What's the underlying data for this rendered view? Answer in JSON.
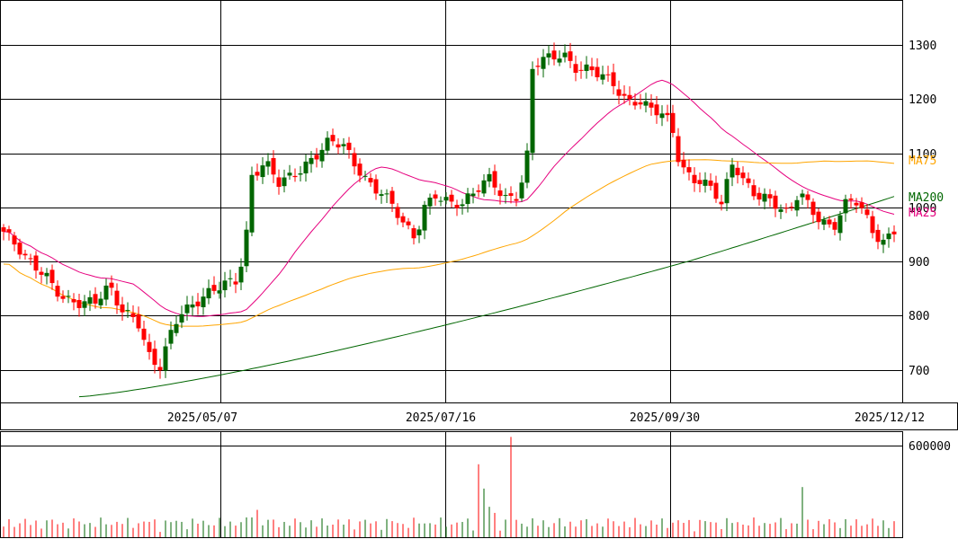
{
  "chart_data": [
    {
      "type": "candlestick",
      "title": "",
      "xlabel": "",
      "ylabel": "",
      "ylim": [
        640,
        1380
      ],
      "y_ticks": [
        700,
        800,
        900,
        1000,
        1100,
        1200,
        1300
      ],
      "x_ticks": [
        "2025/05/07",
        "2025/07/16",
        "2025/09/30",
        "2025/12/12"
      ],
      "grid": true,
      "up_color": "#006600",
      "down_color": "#ff0000",
      "series": [
        {
          "name": "MA25",
          "color": "#e6007e"
        },
        {
          "name": "MA75",
          "color": "#ffa500"
        },
        {
          "name": "MA200",
          "color": "#006600"
        }
      ]
    },
    {
      "type": "bar",
      "title": "",
      "y_ticks": [
        600000
      ],
      "ylim": [
        0,
        700000
      ],
      "grid": true,
      "up_color": "#006600",
      "down_color": "#ff0000"
    }
  ]
}
